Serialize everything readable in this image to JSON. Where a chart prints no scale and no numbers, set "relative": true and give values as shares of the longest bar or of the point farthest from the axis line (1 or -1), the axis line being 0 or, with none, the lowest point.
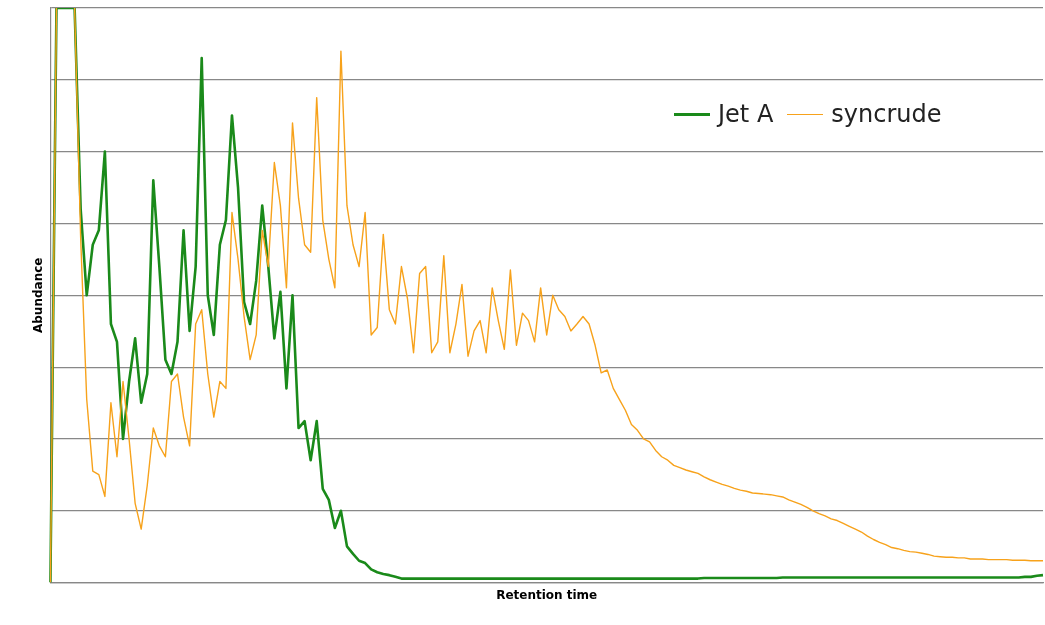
{
  "chart_data": {
    "type": "line",
    "relative": true,
    "xlabel": "Retention time",
    "ylabel": "Abundance",
    "grid": "y",
    "legend": "top right",
    "marker": "none",
    "line_style": "solid",
    "categories": [
      null,
      null,
      null,
      null,
      null,
      null,
      null,
      null,
      null,
      null,
      null,
      null,
      null,
      null,
      null,
      null,
      null,
      null,
      null,
      null,
      null,
      null,
      null,
      null,
      null,
      null,
      null,
      null,
      null,
      null,
      null,
      null,
      null,
      null,
      null,
      null,
      null,
      null,
      null,
      null,
      null,
      null,
      null,
      null,
      null,
      null,
      null,
      null,
      null,
      null,
      null,
      null,
      null,
      null,
      null,
      null,
      null,
      null,
      null,
      null,
      null,
      null,
      null,
      null,
      null,
      null,
      null,
      null,
      null,
      null,
      null,
      null,
      null,
      null,
      null,
      null,
      null,
      null,
      null,
      null,
      null,
      null,
      null,
      null,
      null,
      null,
      null,
      null,
      null,
      null,
      null,
      null,
      null,
      null,
      null,
      null,
      null,
      null,
      null,
      null,
      null,
      null,
      null,
      null,
      null,
      null,
      null,
      null,
      null,
      null,
      null,
      null,
      null,
      null,
      null,
      null,
      null,
      null,
      null,
      null,
      null,
      null,
      null,
      null,
      null,
      null,
      null,
      null,
      null,
      null,
      null,
      null,
      null,
      null,
      null,
      null,
      null,
      null,
      null,
      null,
      null,
      null,
      null,
      null,
      null,
      null,
      null,
      null,
      null,
      null,
      null,
      null,
      null,
      null,
      null,
      null,
      null,
      null,
      null,
      null,
      null,
      null,
      null,
      null,
      null
    ],
    "series": [
      {
        "name": "Jet A",
        "color": "#1a8a1a",
        "values": [
          0,
          1,
          1,
          1,
          1,
          0.65,
          0.5,
          0.588,
          0.613,
          0.75,
          0.45,
          0.419,
          0.25,
          0.35,
          0.425,
          0.313,
          0.363,
          0.7,
          0.55,
          0.388,
          0.363,
          0.419,
          0.613,
          0.438,
          0.55,
          0.913,
          0.5,
          0.431,
          0.588,
          0.631,
          0.813,
          0.688,
          0.488,
          0.45,
          0.525,
          0.656,
          0.55,
          0.425,
          0.506,
          0.338,
          0.5,
          0.269,
          0.281,
          0.213,
          0.281,
          0.163,
          0.144,
          0.095,
          0.125,
          0.063,
          0.05,
          0.038,
          0.034,
          0.023,
          0.018,
          0.015,
          0.013,
          0.01,
          0.007,
          0.007,
          0.007,
          0.007,
          0.007,
          0.007,
          0.007,
          0.007,
          0.007,
          0.007,
          0.007,
          0.007,
          0.007,
          0.007,
          0.007,
          0.007,
          0.007,
          0.007,
          0.007,
          0.007,
          0.007,
          0.007,
          0.007,
          0.007,
          0.007,
          0.007,
          0.007,
          0.007,
          0.007,
          0.007,
          0.007,
          0.007,
          0.007,
          0.007,
          0.007,
          0.007,
          0.007,
          0.007,
          0.007,
          0.007,
          0.007,
          0.007,
          0.007,
          0.007,
          0.007,
          0.007,
          0.007,
          0.007,
          0.007,
          0.007,
          0.008,
          0.008,
          0.008,
          0.008,
          0.008,
          0.008,
          0.008,
          0.008,
          0.008,
          0.008,
          0.008,
          0.008,
          0.008,
          0.009,
          0.009,
          0.009,
          0.009,
          0.009,
          0.009,
          0.009,
          0.009,
          0.009,
          0.009,
          0.009,
          0.009,
          0.009,
          0.009,
          0.009,
          0.009,
          0.009,
          0.009,
          0.009,
          0.009,
          0.009,
          0.009,
          0.009,
          0.009,
          0.009,
          0.009,
          0.009,
          0.009,
          0.009,
          0.009,
          0.009,
          0.009,
          0.009,
          0.009,
          0.009,
          0.009,
          0.009,
          0.009,
          0.009,
          0.009,
          0.01,
          0.01,
          0.012,
          0.013
        ]
      },
      {
        "name": "syncrude",
        "color": "#f7a21b",
        "values": [
          0,
          1,
          null,
          null,
          1,
          0.6,
          0.319,
          0.194,
          0.188,
          0.15,
          0.313,
          0.219,
          0.35,
          0.25,
          0.138,
          0.093,
          0.169,
          0.269,
          0.238,
          0.219,
          0.35,
          0.363,
          0.288,
          0.238,
          0.45,
          0.475,
          0.363,
          0.288,
          0.35,
          0.338,
          0.644,
          0.563,
          0.463,
          0.388,
          0.431,
          0.613,
          0.55,
          0.731,
          0.656,
          0.513,
          0.8,
          0.669,
          0.588,
          0.575,
          0.844,
          0.631,
          0.563,
          0.513,
          0.925,
          0.656,
          0.588,
          0.55,
          0.644,
          0.431,
          0.444,
          0.606,
          0.475,
          0.45,
          0.55,
          0.494,
          0.4,
          0.538,
          0.55,
          0.4,
          0.419,
          0.569,
          0.4,
          0.45,
          0.519,
          0.394,
          0.438,
          0.456,
          0.4,
          0.513,
          0.456,
          0.406,
          0.544,
          0.413,
          0.469,
          0.456,
          0.419,
          0.513,
          0.431,
          0.5,
          0.475,
          0.463,
          0.438,
          0.45,
          0.463,
          0.45,
          0.413,
          0.365,
          0.37,
          0.338,
          0.319,
          0.3,
          0.275,
          0.265,
          0.25,
          0.245,
          0.23,
          0.219,
          0.213,
          0.204,
          0.2,
          0.196,
          0.193,
          0.19,
          0.184,
          0.179,
          0.175,
          0.171,
          0.168,
          0.164,
          0.161,
          0.159,
          0.156,
          0.155,
          0.154,
          0.153,
          0.151,
          0.149,
          0.144,
          0.14,
          0.136,
          0.131,
          0.125,
          0.12,
          0.116,
          0.111,
          0.108,
          0.103,
          0.098,
          0.093,
          0.088,
          0.081,
          0.075,
          0.07,
          0.066,
          0.061,
          0.059,
          0.056,
          0.054,
          0.053,
          0.051,
          0.049,
          0.046,
          0.045,
          0.044,
          0.044,
          0.043,
          0.043,
          0.041,
          0.041,
          0.041,
          0.04,
          0.04,
          0.04,
          0.04,
          0.039,
          0.039,
          0.039,
          0.038,
          0.038,
          0.038
        ]
      }
    ]
  }
}
